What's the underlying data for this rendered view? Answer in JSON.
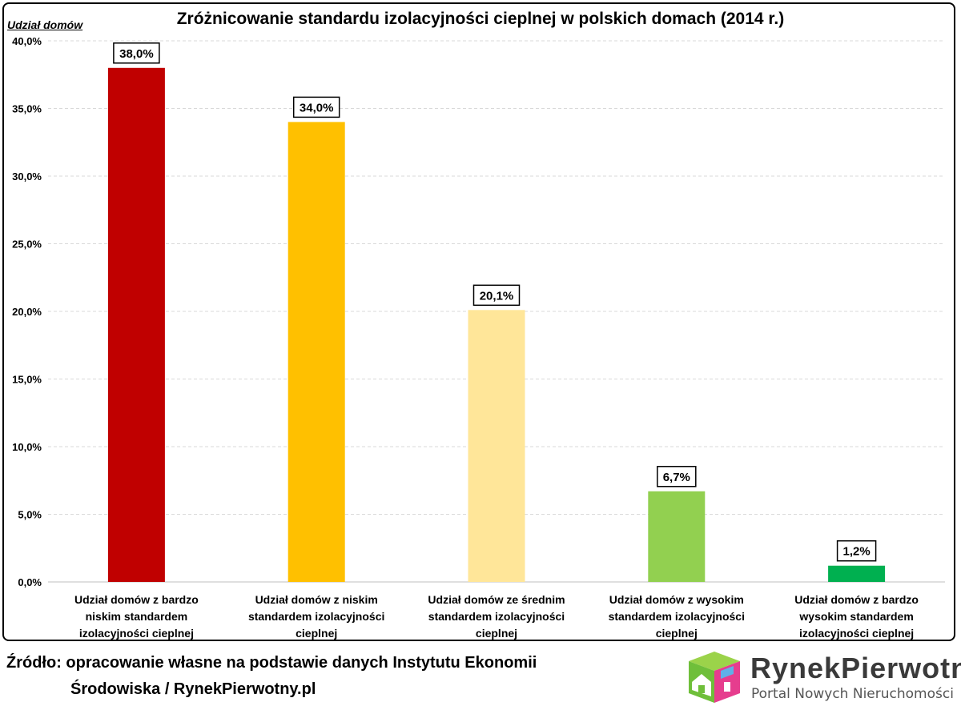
{
  "chart_data": {
    "type": "bar",
    "title": "Zróżnicowanie standardu izolacyjności cieplnej w polskich domach (2014 r.)",
    "ylabel": "Udział domów",
    "ylim": [
      0,
      40
    ],
    "yticks": [
      "0,0%",
      "5,0%",
      "10,0%",
      "15,0%",
      "20,0%",
      "25,0%",
      "30,0%",
      "35,0%",
      "40,0%"
    ],
    "grid": true,
    "categories": [
      [
        "Udział domów z bardzo",
        "niskim standardem",
        "izolacyjności cieplnej"
      ],
      [
        "Udział domów z niskim",
        "standardem izolacyjności",
        "cieplnej"
      ],
      [
        "Udział domów ze średnim",
        "standardem izolacyjności",
        "cieplnej"
      ],
      [
        "Udział domów z wysokim",
        "standardem izolacyjności",
        "cieplnej"
      ],
      [
        "Udział domów z bardzo",
        "wysokim standardem",
        "izolacyjności cieplnej"
      ]
    ],
    "values": [
      38.0,
      34.0,
      20.1,
      6.7,
      1.2
    ],
    "value_labels": [
      "38,0%",
      "34,0%",
      "20,1%",
      "6,7%",
      "1,2%"
    ],
    "colors": [
      "#c00000",
      "#ffc000",
      "#ffe699",
      "#92d050",
      "#00b050"
    ]
  },
  "source": {
    "line1": "Źródło: opracowanie własne na podstawie danych Instytutu Ekonomii",
    "line2": "Środowiska / RynekPierwotny.pl"
  },
  "logo": {
    "name_part1": "Rynek",
    "name_part2": "Pierwotny",
    "tagline": "Portal Nowych Nieruchomości"
  }
}
